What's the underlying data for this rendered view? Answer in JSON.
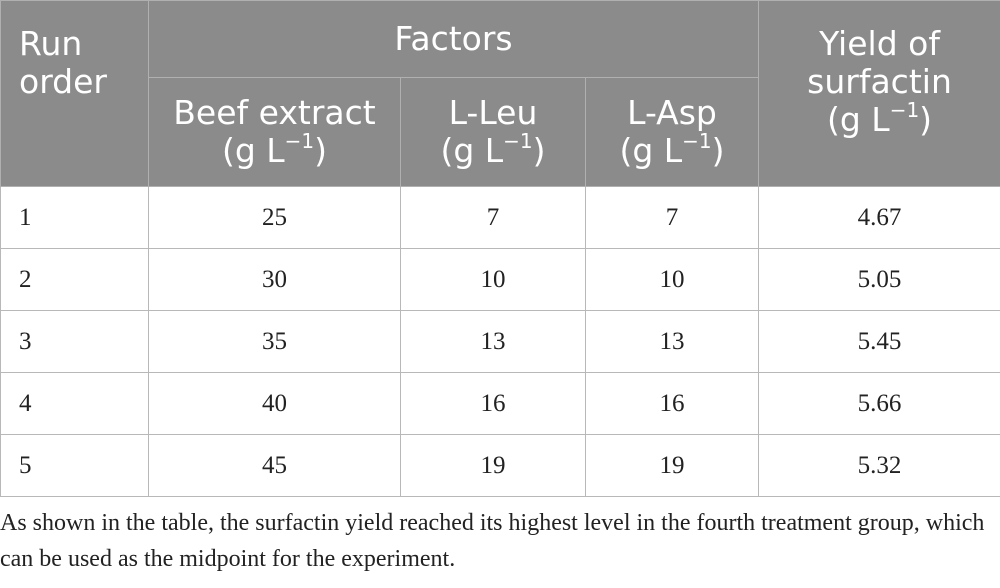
{
  "table": {
    "headers": {
      "run_order_line1": "Run",
      "run_order_line2": "order",
      "factors": "Factors",
      "beef_extract": "Beef extract",
      "l_leu": "L-Leu",
      "l_asp": "L-Asp",
      "yield_line1": "Yield of",
      "yield_line2": "surfactin",
      "unit_base": "(g L",
      "unit_exp": "−1",
      "unit_close": ")"
    },
    "rows": [
      {
        "run": "1",
        "beef_extract": "25",
        "l_leu": "7",
        "l_asp": "7",
        "yield": "4.67"
      },
      {
        "run": "2",
        "beef_extract": "30",
        "l_leu": "10",
        "l_asp": "10",
        "yield": "5.05"
      },
      {
        "run": "3",
        "beef_extract": "35",
        "l_leu": "13",
        "l_asp": "13",
        "yield": "5.45"
      },
      {
        "run": "4",
        "beef_extract": "40",
        "l_leu": "16",
        "l_asp": "16",
        "yield": "5.66"
      },
      {
        "run": "5",
        "beef_extract": "45",
        "l_leu": "19",
        "l_asp": "19",
        "yield": "5.32"
      }
    ]
  },
  "footnote": "As shown in the table, the surfactin yield reached its highest level in the fourth treatment group, which can be used as the midpoint for the experiment.",
  "colors": {
    "header_bg": "#8b8b8b",
    "header_text": "#ffffff",
    "border": "#b8b8b8"
  }
}
